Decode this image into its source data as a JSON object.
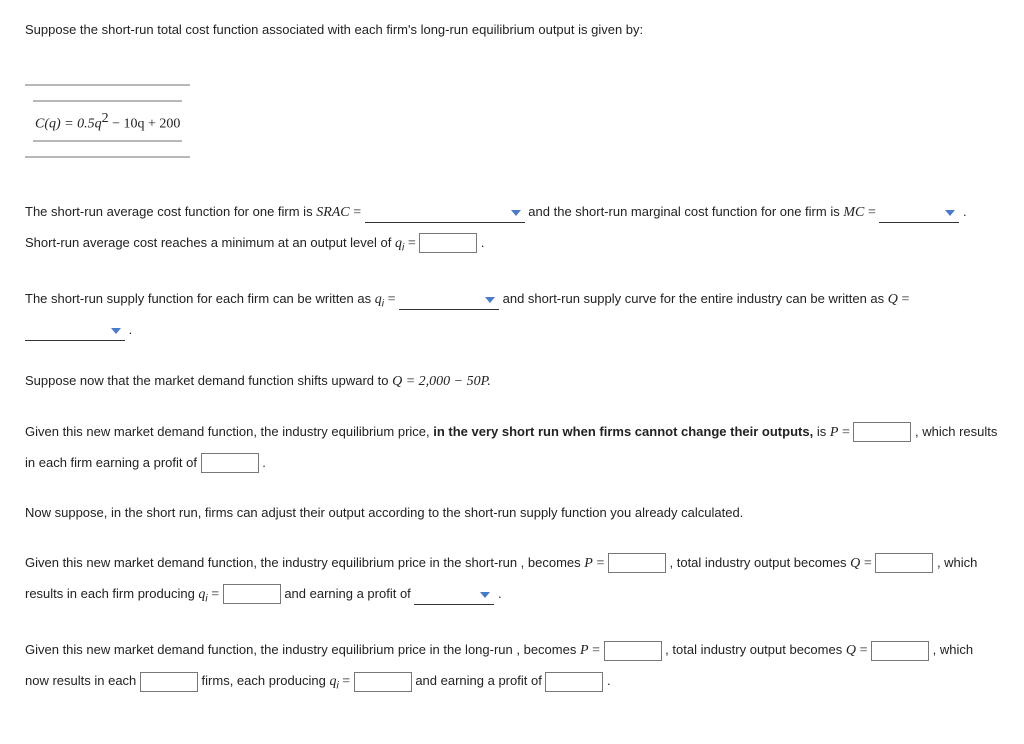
{
  "intro": "Suppose the short-run total cost function associated with each firm's long-run equilibrium output is given by:",
  "costEq": {
    "lhs": "C(q) = 0.5q",
    "exp": "2",
    "rhs": " − 10q + 200"
  },
  "line1": {
    "a": "The short-run average cost function for one firm is ",
    "srac": "SRAC",
    "b": " and the short-run marginal cost function for one firm is ",
    "mc": "MC",
    "c": " . Short-run average cost reaches a minimum at an output level of ",
    "qi": "q",
    "qi_sub": "i"
  },
  "line2": {
    "a": "The short-run supply function for each firm can be written as ",
    "b": " and short-run supply curve for the entire industry can be written as ",
    "Q": "Q"
  },
  "line3": {
    "a": "Suppose now that the market demand function shifts upward to ",
    "eq": "Q = 2,000 − 50P."
  },
  "line4": {
    "a": "Given this new market demand function, the industry equilibrium price, ",
    "bold": "in the very short run when firms cannot change their outputs,",
    "b": " is ",
    "P": "P",
    "c": " , which results in each firm earning a profit of "
  },
  "line5": "Now suppose, in the short run, firms can adjust their output according to the short-run supply function you already calculated.",
  "line6": {
    "a": "Given this new market demand function, the industry equilibrium price in the short-run , becomes ",
    "b": " , total industry output becomes ",
    "c": " , which results in each firm producing ",
    "d": " and earning a profit of "
  },
  "line7": {
    "a": "Given this new market demand function, the industry equilibrium price in the long-run , becomes ",
    "b": " , total industry output becomes ",
    "c": " , which now results in each ",
    "d": " firms, each producing ",
    "e": " and earning a profit of "
  }
}
